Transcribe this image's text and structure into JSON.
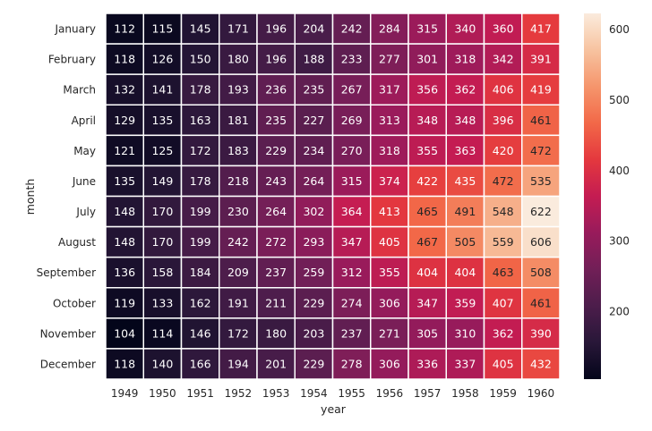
{
  "chart_data": {
    "type": "heatmap",
    "xlabel": "year",
    "ylabel": "month",
    "x": [
      "1949",
      "1950",
      "1951",
      "1952",
      "1953",
      "1954",
      "1955",
      "1956",
      "1957",
      "1958",
      "1959",
      "1960"
    ],
    "y": [
      "January",
      "February",
      "March",
      "April",
      "May",
      "June",
      "July",
      "August",
      "September",
      "October",
      "November",
      "December"
    ],
    "values": [
      [
        112,
        115,
        145,
        171,
        196,
        204,
        242,
        284,
        315,
        340,
        360,
        417
      ],
      [
        118,
        126,
        150,
        180,
        196,
        188,
        233,
        277,
        301,
        318,
        342,
        391
      ],
      [
        132,
        141,
        178,
        193,
        236,
        235,
        267,
        317,
        356,
        362,
        406,
        419
      ],
      [
        129,
        135,
        163,
        181,
        235,
        227,
        269,
        313,
        348,
        348,
        396,
        461
      ],
      [
        121,
        125,
        172,
        183,
        229,
        234,
        270,
        318,
        355,
        363,
        420,
        472
      ],
      [
        135,
        149,
        178,
        218,
        243,
        264,
        315,
        374,
        422,
        435,
        472,
        535
      ],
      [
        148,
        170,
        199,
        230,
        264,
        302,
        364,
        413,
        465,
        491,
        548,
        622
      ],
      [
        148,
        170,
        199,
        242,
        272,
        293,
        347,
        405,
        467,
        505,
        559,
        606
      ],
      [
        136,
        158,
        184,
        209,
        237,
        259,
        312,
        355,
        404,
        404,
        463,
        508
      ],
      [
        119,
        133,
        162,
        191,
        211,
        229,
        274,
        306,
        347,
        359,
        407,
        461
      ],
      [
        104,
        114,
        146,
        172,
        180,
        203,
        237,
        271,
        305,
        310,
        362,
        390
      ],
      [
        118,
        140,
        166,
        194,
        201,
        229,
        278,
        306,
        336,
        337,
        405,
        432
      ]
    ],
    "colormap": "rocket",
    "colorbar": {
      "range": [
        104,
        622
      ],
      "ticks": [
        200,
        300,
        400,
        500,
        600
      ]
    },
    "annotated": true,
    "cell_border_color": "#ffffff"
  }
}
